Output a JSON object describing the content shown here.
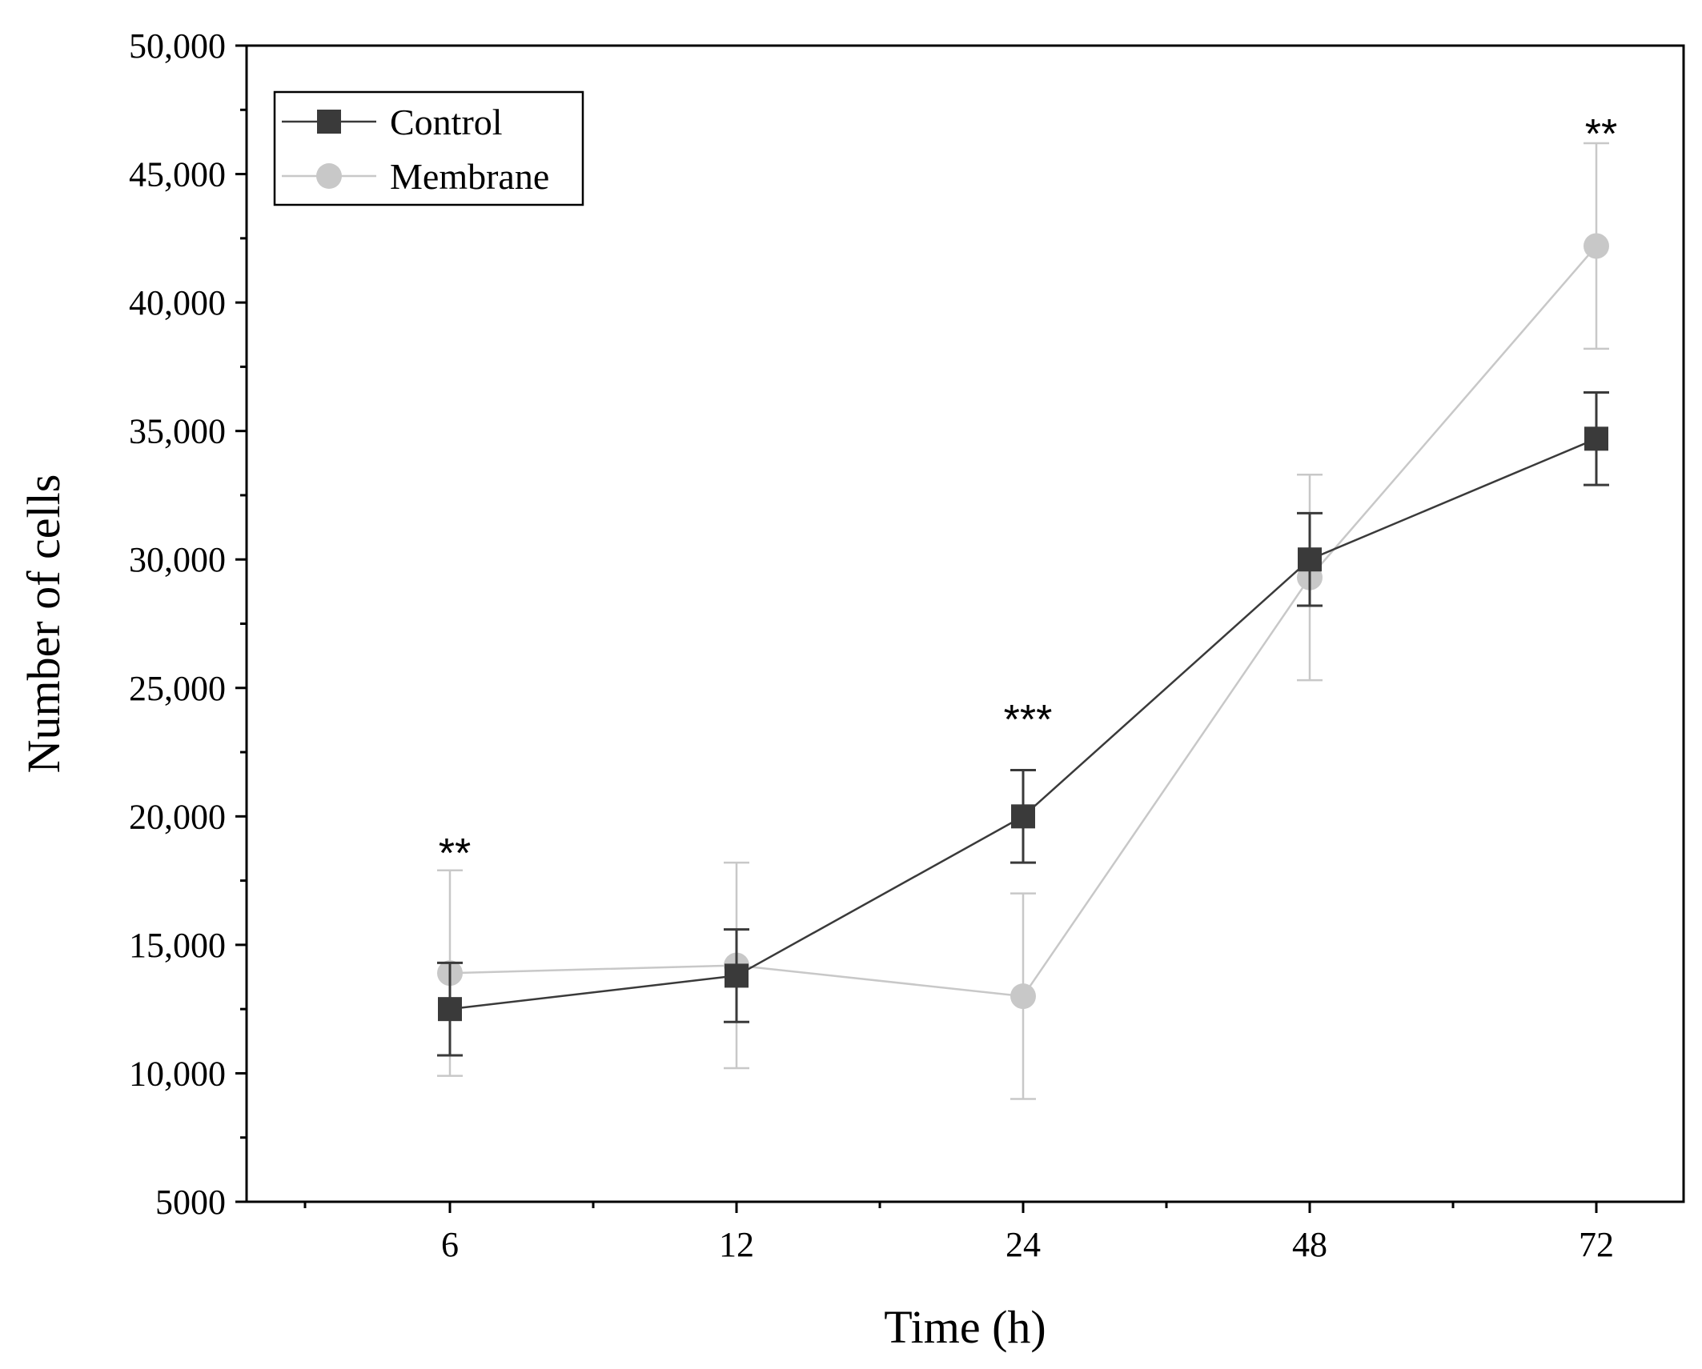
{
  "chart_data": {
    "type": "line",
    "title": "",
    "xlabel": "Time (h)",
    "ylabel": "Number of cells",
    "categories": [
      "6",
      "12",
      "24",
      "48",
      "72"
    ],
    "ylim": [
      5000,
      50000
    ],
    "yticks": [
      5000,
      10000,
      15000,
      20000,
      25000,
      30000,
      35000,
      40000,
      45000,
      50000
    ],
    "ytick_labels": [
      "5000",
      "10,000",
      "15,000",
      "20,000",
      "25,000",
      "30,000",
      "35,000",
      "40,000",
      "45,000",
      "50,000"
    ],
    "grid": false,
    "legend_position": "top-left",
    "series": [
      {
        "name": "Control",
        "marker": "square",
        "color": "#3a3a3a",
        "values": [
          12500,
          13800,
          20000,
          30000,
          34700
        ],
        "error": [
          1800,
          1800,
          1800,
          1800,
          1800
        ]
      },
      {
        "name": "Membrane",
        "marker": "circle",
        "color": "#c8c8c8",
        "values": [
          13900,
          14200,
          13000,
          29300,
          42200
        ],
        "error": [
          4000,
          4000,
          4000,
          4000,
          4000
        ]
      }
    ],
    "annotations": [
      {
        "category": "6",
        "text": "**",
        "y": 19200
      },
      {
        "category": "24",
        "text": "***",
        "y": 24400
      },
      {
        "category": "72",
        "text": "**",
        "y": 47200
      }
    ]
  }
}
